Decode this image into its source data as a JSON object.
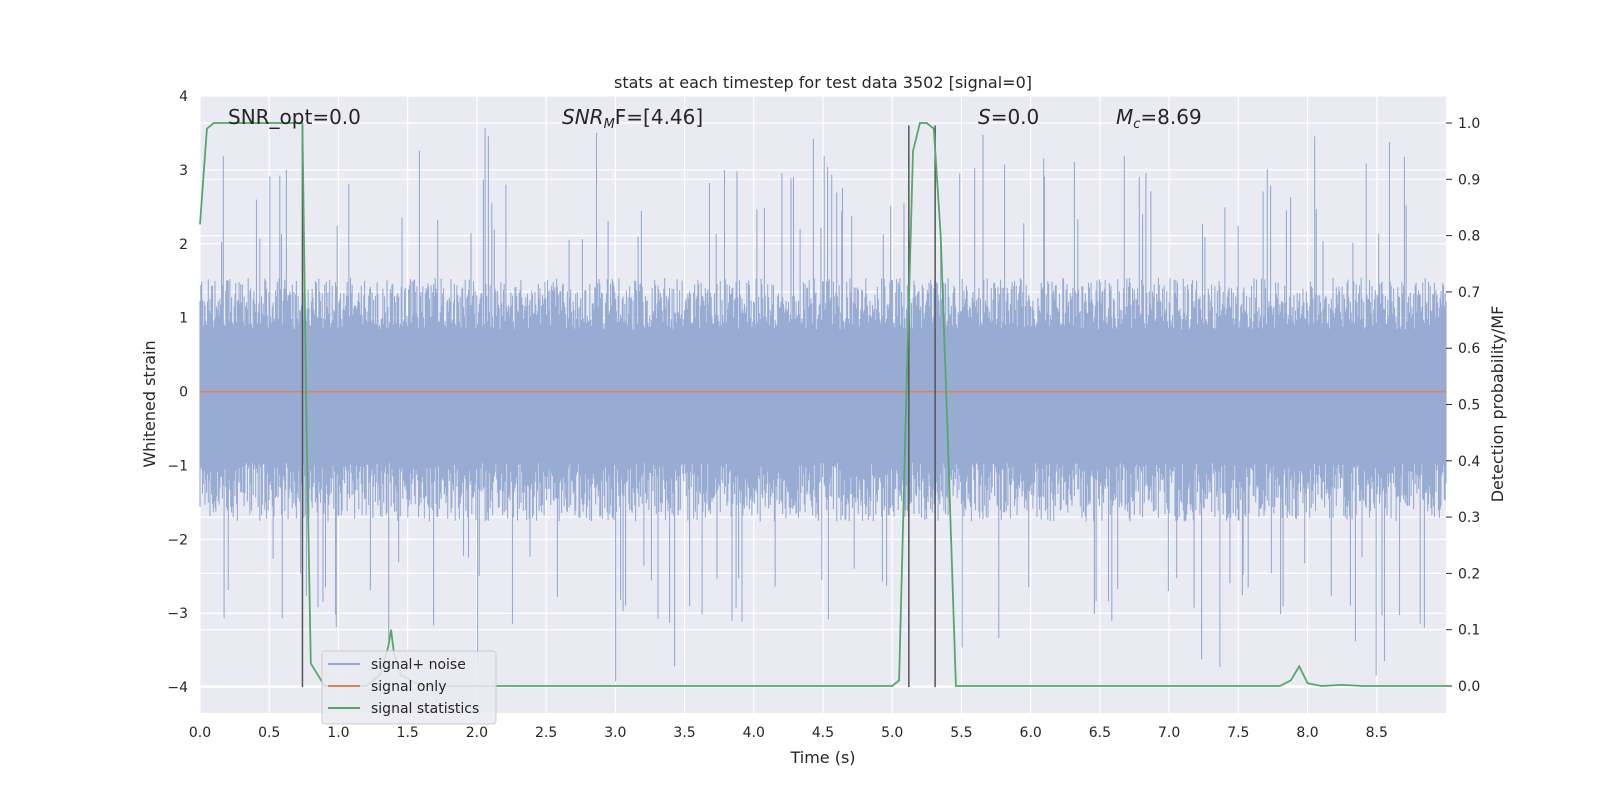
{
  "chart_data": {
    "type": "line",
    "title": "stats at each timestep for test data 3502 [signal=0]",
    "xlabel": "Time (s)",
    "ylabel_left": "Whitened strain",
    "ylabel_right": "Detection probability/MF",
    "xlim": [
      0.0,
      9.0
    ],
    "ylim_left": [
      -4.35,
      4.0
    ],
    "ylim_right": [
      -0.048,
      1.048
    ],
    "x_ticks": [
      "0.0",
      "0.5",
      "1.0",
      "1.5",
      "2.0",
      "2.5",
      "3.0",
      "3.5",
      "4.0",
      "4.5",
      "5.0",
      "5.5",
      "6.0",
      "6.5",
      "7.0",
      "7.5",
      "8.0",
      "8.5"
    ],
    "x_tick_values": [
      0.0,
      0.5,
      1.0,
      1.5,
      2.0,
      2.5,
      3.0,
      3.5,
      4.0,
      4.5,
      5.0,
      5.5,
      6.0,
      6.5,
      7.0,
      7.5,
      8.0,
      8.5
    ],
    "y_left_ticks": [
      "4",
      "3",
      "2",
      "1",
      "0",
      "−1",
      "−2",
      "−3",
      "−4"
    ],
    "y_left_tick_values": [
      4,
      3,
      2,
      1,
      0,
      -1,
      -2,
      -3,
      -4
    ],
    "y_right_ticks": [
      "1.0",
      "0.9",
      "0.8",
      "0.7",
      "0.6",
      "0.5",
      "0.4",
      "0.3",
      "0.2",
      "0.1",
      "0.0"
    ],
    "y_right_tick_values": [
      1.0,
      0.9,
      0.8,
      0.7,
      0.6,
      0.5,
      0.4,
      0.3,
      0.2,
      0.1,
      0.0
    ],
    "grid": true,
    "annotations": {
      "snr_opt": "SNR_opt=0.0",
      "snr_mf": "F=[4.46]",
      "snr_mf_prefix": "SNR",
      "snr_mf_sub": "M",
      "s": "=0.0",
      "s_prefix": "S",
      "mc": "=8.69",
      "mc_prefix": "M",
      "mc_sub": "c"
    },
    "vertical_lines_x": [
      0.74,
      5.12,
      5.31
    ],
    "vertical_lines_ymax": 3.6,
    "series": [
      {
        "name": "signal+ noise",
        "color": "#92a8d1",
        "axis": "left",
        "kind": "noise",
        "upper_typical": 1.4,
        "lower_typical": -1.6,
        "upper_extreme": 3.6,
        "lower_extreme": -4.0
      },
      {
        "name": "signal only",
        "color": "#dd8452",
        "axis": "left",
        "x": [
          0.0,
          9.0
        ],
        "y": [
          0.0,
          0.0
        ]
      },
      {
        "name": "signal statistics",
        "color": "#55a868",
        "axis": "right",
        "x": [
          0.0,
          0.05,
          0.1,
          0.2,
          0.4,
          0.6,
          0.7,
          0.74,
          0.77,
          0.8,
          0.85,
          0.9,
          1.0,
          1.2,
          1.3,
          1.36,
          1.38,
          1.4,
          1.45,
          1.6,
          2.0,
          3.0,
          4.0,
          5.0,
          5.05,
          5.1,
          5.15,
          5.2,
          5.25,
          5.3,
          5.35,
          5.4,
          5.46,
          5.5,
          6.0,
          7.0,
          7.8,
          7.88,
          7.94,
          8.0,
          8.1,
          8.25,
          8.4,
          8.6,
          9.0
        ],
        "y": [
          0.82,
          0.99,
          1.0,
          1.0,
          1.0,
          1.0,
          1.0,
          1.0,
          0.45,
          0.04,
          0.02,
          0.0,
          0.0,
          0.0,
          0.02,
          0.07,
          0.1,
          0.06,
          0.02,
          0.0,
          0.0,
          0.0,
          0.0,
          0.0,
          0.01,
          0.5,
          0.95,
          1.0,
          1.0,
          0.99,
          0.8,
          0.45,
          0.0,
          0.0,
          0.0,
          0.0,
          0.0,
          0.01,
          0.035,
          0.005,
          0.0,
          0.002,
          0.0,
          0.0,
          0.0
        ]
      }
    ],
    "legend": {
      "placement": "lower-left",
      "entries": [
        "signal+ noise",
        "signal only",
        "signal statistics"
      ]
    }
  }
}
